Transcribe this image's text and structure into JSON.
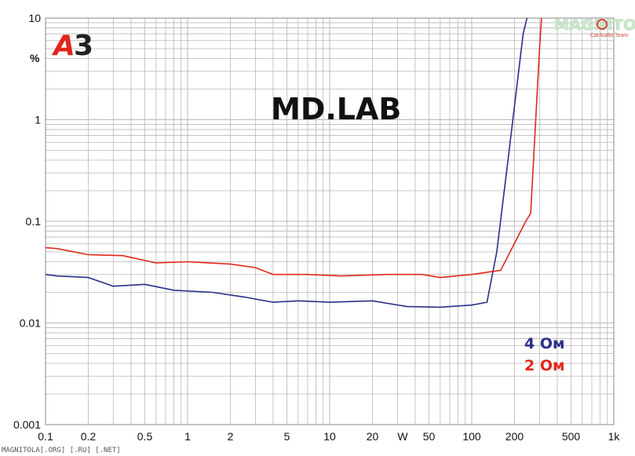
{
  "brand": {
    "badge_letter": "А",
    "badge_digit": "3",
    "lab_title": "MD.LAB",
    "watermark": "MAGNITOLA",
    "watermark_sub": "CarAudio Team",
    "footer": "MAGNITOLA[.ORG] [.RU] [.NET]"
  },
  "colors": {
    "series_4ohm": "#2a2f8a",
    "series_2ohm": "#e0281a",
    "grid": "#b8b8b8",
    "badge_red": "#e0261c",
    "badge_dark": "#222222"
  },
  "chart_data": {
    "type": "line",
    "title": "",
    "xlabel": "W",
    "ylabel": "%",
    "x_scale": "log",
    "y_scale": "log",
    "xlim": [
      0.1,
      1000
    ],
    "ylim": [
      0.001,
      10
    ],
    "grid": true,
    "legend": "bottom-right",
    "x_ticks": [
      {
        "v": 0.1,
        "label": "0.1"
      },
      {
        "v": 0.2,
        "label": "0.2"
      },
      {
        "v": 0.5,
        "label": "0.5"
      },
      {
        "v": 1,
        "label": "1"
      },
      {
        "v": 2,
        "label": "2"
      },
      {
        "v": 5,
        "label": "5"
      },
      {
        "v": 10,
        "label": "10"
      },
      {
        "v": 20,
        "label": "20"
      },
      {
        "v": 50,
        "label": "50"
      },
      {
        "v": 100,
        "label": "100"
      },
      {
        "v": 200,
        "label": "200"
      },
      {
        "v": 500,
        "label": "500"
      },
      {
        "v": 1000,
        "label": "1k"
      }
    ],
    "y_ticks": [
      {
        "v": 10,
        "label": "10"
      },
      {
        "v": 1,
        "label": "1"
      },
      {
        "v": 0.1,
        "label": "0.1"
      },
      {
        "v": 0.01,
        "label": "0.01"
      },
      {
        "v": 0.001,
        "label": "0.001"
      }
    ],
    "series": [
      {
        "name": "4 Ом",
        "color_key": "series_4ohm",
        "points": [
          [
            0.1,
            0.03
          ],
          [
            0.12,
            0.029
          ],
          [
            0.2,
            0.028
          ],
          [
            0.3,
            0.023
          ],
          [
            0.5,
            0.024
          ],
          [
            0.8,
            0.021
          ],
          [
            1.5,
            0.02
          ],
          [
            2.5,
            0.018
          ],
          [
            4,
            0.016
          ],
          [
            6,
            0.0165
          ],
          [
            10,
            0.016
          ],
          [
            20,
            0.0165
          ],
          [
            35,
            0.0145
          ],
          [
            60,
            0.0143
          ],
          [
            100,
            0.015
          ],
          [
            128,
            0.016
          ],
          [
            150,
            0.05
          ],
          [
            180,
            0.4
          ],
          [
            230,
            7.0
          ],
          [
            245,
            10
          ]
        ]
      },
      {
        "name": "2 Ом",
        "color_key": "series_2ohm",
        "points": [
          [
            0.1,
            0.055
          ],
          [
            0.12,
            0.054
          ],
          [
            0.2,
            0.047
          ],
          [
            0.35,
            0.046
          ],
          [
            0.6,
            0.039
          ],
          [
            1,
            0.04
          ],
          [
            2,
            0.038
          ],
          [
            3,
            0.035
          ],
          [
            4,
            0.03
          ],
          [
            7,
            0.03
          ],
          [
            12,
            0.029
          ],
          [
            25,
            0.03
          ],
          [
            45,
            0.03
          ],
          [
            60,
            0.028
          ],
          [
            100,
            0.03
          ],
          [
            160,
            0.033
          ],
          [
            240,
            0.1
          ],
          [
            260,
            0.12
          ],
          [
            300,
            5.0
          ],
          [
            310,
            10
          ]
        ]
      }
    ]
  }
}
